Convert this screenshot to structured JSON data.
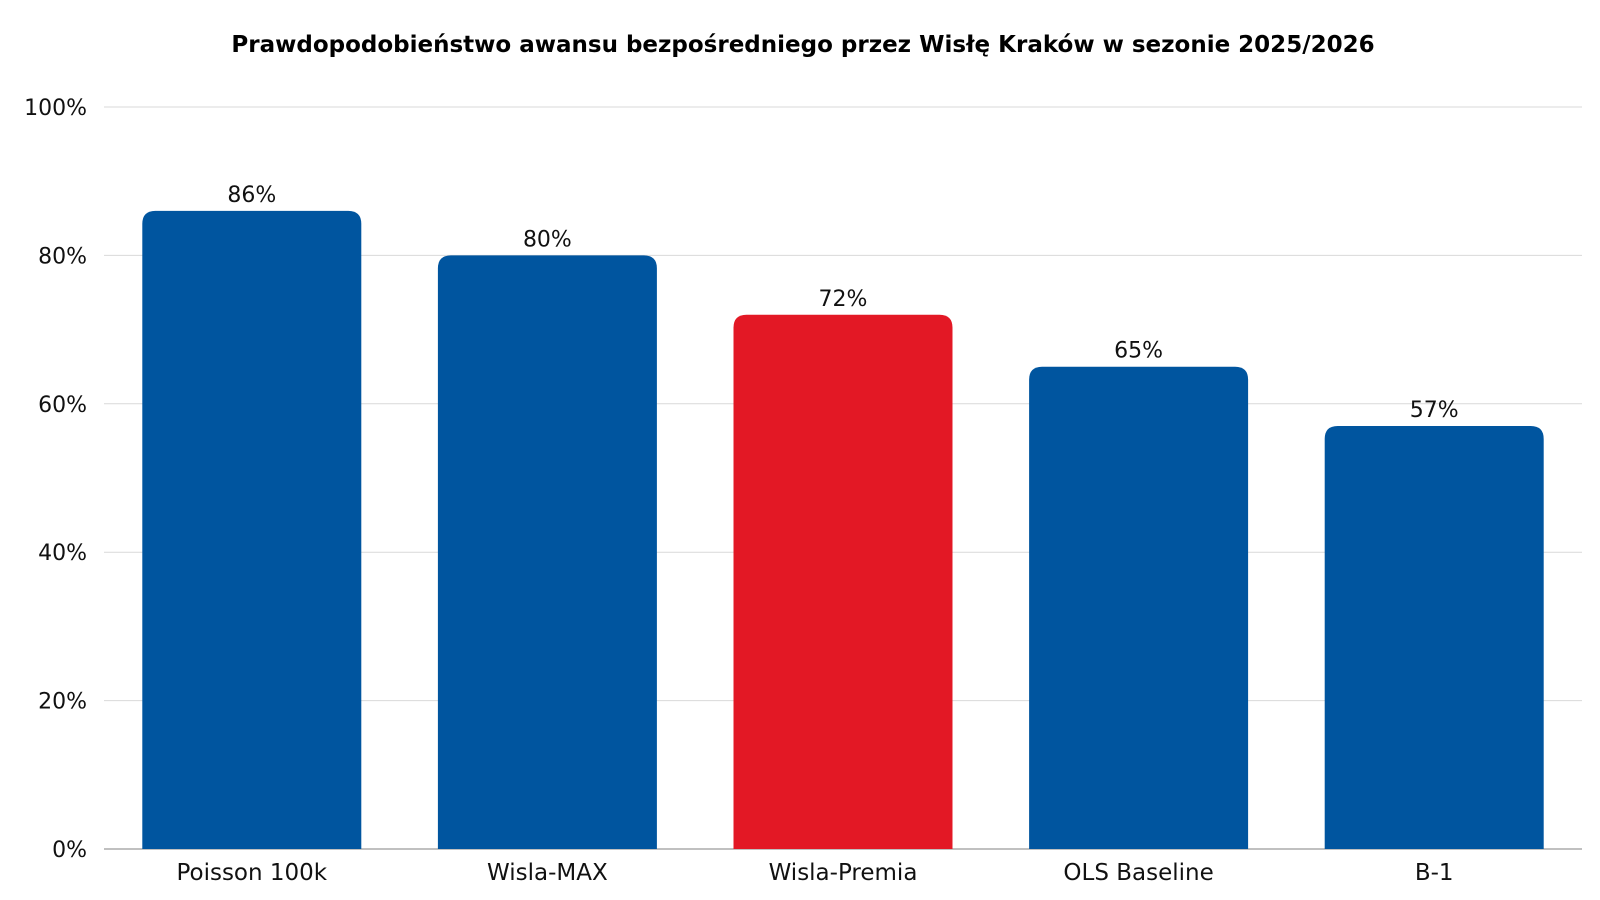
{
  "chart_data": {
    "type": "bar",
    "title": "Prawdopodobieństwo awansu bezpośredniego przez Wisłę Kraków w sezonie 2025/2026",
    "xlabel": "",
    "ylabel": "",
    "categories": [
      "Poisson 100k",
      "Wisla-MAX",
      "Wisla-Premia",
      "OLS Baseline",
      "B-1"
    ],
    "values": [
      86,
      80,
      72,
      65,
      57
    ],
    "value_labels": [
      "86%",
      "80%",
      "72%",
      "65%",
      "57%"
    ],
    "ylim": [
      0,
      100
    ],
    "y_ticks": [
      0,
      20,
      40,
      60,
      80,
      100
    ],
    "y_tick_labels": [
      "0%",
      "20%",
      "40%",
      "60%",
      "80%",
      "100%"
    ],
    "grid": true,
    "legend": "none",
    "colors": {
      "default": "#00559f",
      "highlight": "#e31825"
    },
    "highlight_category": "Wisla-Premia"
  }
}
